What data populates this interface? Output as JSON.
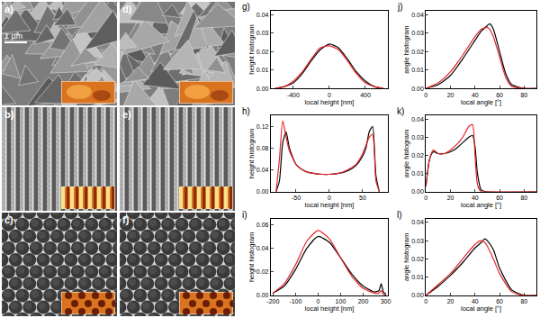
{
  "figure": {
    "panels": [
      "a)",
      "b)",
      "c)",
      "d)",
      "e)",
      "f)"
    ],
    "scale_bar": "1 µm"
  },
  "chart_data": [
    {
      "type": "line",
      "title": "g)",
      "x_label": "local height [nm]",
      "y_label": "height histogram",
      "xlim": [
        -650,
        650
      ],
      "ylim": [
        0,
        0.042
      ],
      "xticks": [
        -400,
        0,
        400
      ],
      "yticks": [
        {
          "value": 0,
          "label": "0.00"
        },
        {
          "value": 0.01,
          "label": "0.01"
        },
        {
          "value": 0.02,
          "label": "0.02"
        },
        {
          "value": 0.03,
          "label": "0.03"
        },
        {
          "value": 0.04,
          "label": "0.04"
        }
      ],
      "grid": false,
      "series": [
        {
          "color": "#000000",
          "x": [
            -600,
            -500,
            -400,
            -300,
            -200,
            -100,
            0,
            100,
            200,
            300,
            400,
            500,
            600
          ],
          "values": [
            0.0,
            0.001,
            0.003,
            0.008,
            0.015,
            0.021,
            0.024,
            0.022,
            0.016,
            0.009,
            0.004,
            0.001,
            0.0
          ]
        },
        {
          "color": "#e8262a",
          "x": [
            -600,
            -500,
            -400,
            -300,
            -200,
            -100,
            0,
            100,
            200,
            300,
            400,
            500,
            600
          ],
          "values": [
            0.0,
            0.001,
            0.004,
            0.009,
            0.016,
            0.022,
            0.023,
            0.021,
            0.015,
            0.008,
            0.003,
            0.001,
            0.0
          ]
        }
      ]
    },
    {
      "type": "line",
      "title": "h)",
      "x_label": "local height [nm]",
      "y_label": "height histogram",
      "xlim": [
        -88,
        88
      ],
      "ylim": [
        0,
        0.14
      ],
      "xticks": [
        -50,
        0,
        50
      ],
      "yticks": [
        {
          "value": 0,
          "label": "0.00"
        },
        {
          "value": 0.04,
          "label": "0.04"
        },
        {
          "value": 0.08,
          "label": "0.08"
        },
        {
          "value": 0.12,
          "label": "0.12"
        }
      ],
      "grid": false,
      "series": [
        {
          "color": "#000000",
          "x": [
            -80,
            -75,
            -70,
            -65,
            -60,
            -50,
            -40,
            -30,
            -20,
            -10,
            0,
            10,
            20,
            30,
            40,
            50,
            55,
            60,
            65,
            70,
            75
          ],
          "values": [
            0.0,
            0.02,
            0.09,
            0.11,
            0.08,
            0.05,
            0.04,
            0.035,
            0.033,
            0.032,
            0.032,
            0.033,
            0.035,
            0.04,
            0.048,
            0.065,
            0.08,
            0.11,
            0.12,
            0.03,
            0.0
          ]
        },
        {
          "color": "#e8262a",
          "x": [
            -80,
            -75,
            -70,
            -65,
            -60,
            -50,
            -40,
            -30,
            -20,
            -10,
            0,
            10,
            20,
            30,
            40,
            50,
            55,
            60,
            65,
            70,
            75
          ],
          "values": [
            0.0,
            0.06,
            0.13,
            0.1,
            0.075,
            0.05,
            0.04,
            0.035,
            0.033,
            0.032,
            0.032,
            0.033,
            0.036,
            0.042,
            0.05,
            0.07,
            0.085,
            0.1,
            0.105,
            0.02,
            0.0
          ]
        }
      ]
    },
    {
      "type": "line",
      "title": "i)",
      "x_label": "local height [nm]",
      "y_label": "height histogram",
      "xlim": [
        -210,
        310
      ],
      "ylim": [
        0,
        0.065
      ],
      "xticks": [
        -200,
        -100,
        0,
        100,
        200,
        300
      ],
      "yticks": [
        {
          "value": 0,
          "label": "0.00"
        },
        {
          "value": 0.02,
          "label": "0.02"
        },
        {
          "value": 0.04,
          "label": "0.04"
        },
        {
          "value": 0.06,
          "label": "0.06"
        }
      ],
      "grid": false,
      "series": [
        {
          "color": "#000000",
          "x": [
            -200,
            -150,
            -100,
            -50,
            0,
            50,
            100,
            150,
            200,
            250,
            270,
            280,
            290,
            300
          ],
          "values": [
            0.002,
            0.008,
            0.022,
            0.04,
            0.05,
            0.045,
            0.032,
            0.018,
            0.008,
            0.003,
            0.004,
            0.01,
            0.003,
            0.001
          ]
        },
        {
          "color": "#e8262a",
          "x": [
            -200,
            -150,
            -100,
            -50,
            0,
            50,
            100,
            150,
            200,
            250,
            270,
            280,
            290,
            300
          ],
          "values": [
            0.002,
            0.01,
            0.026,
            0.046,
            0.055,
            0.048,
            0.032,
            0.016,
            0.006,
            0.002,
            0.002,
            0.004,
            0.001,
            0.0
          ]
        }
      ]
    },
    {
      "type": "line",
      "title": "j)",
      "x_label": "local angle [°]",
      "y_label": "angle histogram",
      "xlim": [
        0,
        90
      ],
      "ylim": [
        0,
        0.042
      ],
      "xticks": [
        0,
        20,
        40,
        60,
        80
      ],
      "yticks": [
        {
          "value": 0,
          "label": "0.00"
        },
        {
          "value": 0.01,
          "label": "0.01"
        },
        {
          "value": 0.02,
          "label": "0.02"
        },
        {
          "value": 0.03,
          "label": "0.03"
        },
        {
          "value": 0.04,
          "label": "0.04"
        }
      ],
      "grid": false,
      "series": [
        {
          "color": "#000000",
          "x": [
            0,
            10,
            20,
            30,
            40,
            45,
            50,
            52,
            55,
            60,
            65,
            70,
            80,
            90
          ],
          "values": [
            0.0,
            0.002,
            0.007,
            0.016,
            0.026,
            0.031,
            0.034,
            0.035,
            0.032,
            0.02,
            0.008,
            0.002,
            0.0,
            0.0
          ]
        },
        {
          "color": "#e8262a",
          "x": [
            0,
            10,
            20,
            30,
            40,
            45,
            50,
            52,
            55,
            60,
            65,
            70,
            80,
            90
          ],
          "values": [
            0.0,
            0.003,
            0.009,
            0.018,
            0.028,
            0.032,
            0.033,
            0.032,
            0.028,
            0.017,
            0.006,
            0.001,
            0.0,
            0.0
          ]
        }
      ]
    },
    {
      "type": "line",
      "title": "k)",
      "x_label": "local angle [°]",
      "y_label": "angle histogram",
      "xlim": [
        0,
        90
      ],
      "ylim": [
        0,
        0.042
      ],
      "xticks": [
        0,
        20,
        40,
        60,
        80
      ],
      "yticks": [
        {
          "value": 0,
          "label": "0.00"
        },
        {
          "value": 0.01,
          "label": "0.01"
        },
        {
          "value": 0.02,
          "label": "0.02"
        },
        {
          "value": 0.03,
          "label": "0.03"
        },
        {
          "value": 0.04,
          "label": "0.04"
        }
      ],
      "grid": false,
      "series": [
        {
          "color": "#000000",
          "x": [
            0,
            3,
            6,
            10,
            15,
            20,
            25,
            30,
            35,
            38,
            40,
            42,
            45,
            50,
            90
          ],
          "values": [
            0.003,
            0.018,
            0.022,
            0.021,
            0.021,
            0.022,
            0.024,
            0.027,
            0.03,
            0.031,
            0.025,
            0.01,
            0.001,
            0.0,
            0.0
          ]
        },
        {
          "color": "#e8262a",
          "x": [
            0,
            3,
            6,
            10,
            15,
            20,
            25,
            30,
            35,
            38,
            40,
            42,
            45,
            50,
            90
          ],
          "values": [
            0.003,
            0.018,
            0.023,
            0.021,
            0.021,
            0.023,
            0.026,
            0.03,
            0.036,
            0.037,
            0.02,
            0.004,
            0.0,
            0.0,
            0.0
          ]
        }
      ]
    },
    {
      "type": "line",
      "title": "l)",
      "x_label": "local angle [°]",
      "y_label": "angle histogram",
      "xlim": [
        0,
        90
      ],
      "ylim": [
        0,
        0.042
      ],
      "xticks": [
        0,
        20,
        40,
        60,
        80
      ],
      "yticks": [
        {
          "value": 0,
          "label": "0.00"
        },
        {
          "value": 0.01,
          "label": "0.01"
        },
        {
          "value": 0.02,
          "label": "0.02"
        },
        {
          "value": 0.03,
          "label": "0.03"
        },
        {
          "value": 0.04,
          "label": "0.04"
        }
      ],
      "grid": false,
      "series": [
        {
          "color": "#000000",
          "x": [
            0,
            10,
            20,
            30,
            40,
            45,
            48,
            50,
            55,
            60,
            70,
            80,
            90
          ],
          "values": [
            0.0,
            0.005,
            0.011,
            0.018,
            0.026,
            0.029,
            0.031,
            0.03,
            0.025,
            0.015,
            0.003,
            0.0,
            0.0
          ]
        },
        {
          "color": "#e8262a",
          "x": [
            0,
            10,
            20,
            30,
            40,
            45,
            48,
            50,
            55,
            60,
            70,
            80,
            90
          ],
          "values": [
            0.0,
            0.006,
            0.012,
            0.02,
            0.028,
            0.03,
            0.029,
            0.027,
            0.02,
            0.012,
            0.002,
            0.0,
            0.0
          ]
        }
      ]
    }
  ]
}
